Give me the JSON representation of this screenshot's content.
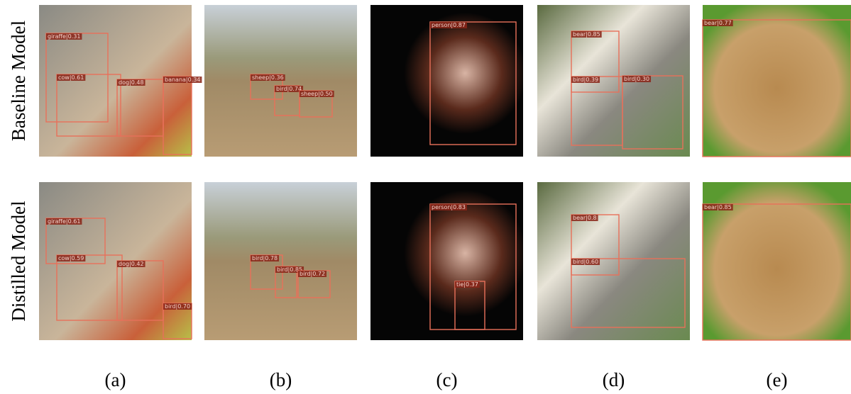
{
  "rows": [
    {
      "label": "Baseline Model",
      "panels": [
        {
          "detections": [
            "giraffe|0.31",
            "cow|0.61",
            "dog|0.48",
            "banana|0.34"
          ]
        },
        {
          "detections": [
            "sheep|0.36",
            "bird|0.74",
            "sheep|0.50"
          ]
        },
        {
          "detections": [
            "person|0.87"
          ]
        },
        {
          "detections": [
            "bear|0.85",
            "bird|0.39",
            "bird|0.30"
          ]
        },
        {
          "detections": [
            "bear|0.77"
          ]
        }
      ]
    },
    {
      "label": "Distilled Model",
      "panels": [
        {
          "detections": [
            "giraffe|0.61",
            "cow|0.59",
            "dog|0.42",
            "bird|0.70"
          ]
        },
        {
          "detections": [
            "bird|0.78",
            "bird|0.85",
            "bird|0.72"
          ]
        },
        {
          "detections": [
            "person|0.83",
            "tie|0.37"
          ]
        },
        {
          "detections": [
            "bear|0.8",
            "bird|0.60"
          ]
        },
        {
          "detections": [
            "bear|0.85"
          ]
        }
      ]
    }
  ],
  "column_labels": [
    "(a)",
    "(b)",
    "(c)",
    "(d)",
    "(e)"
  ]
}
